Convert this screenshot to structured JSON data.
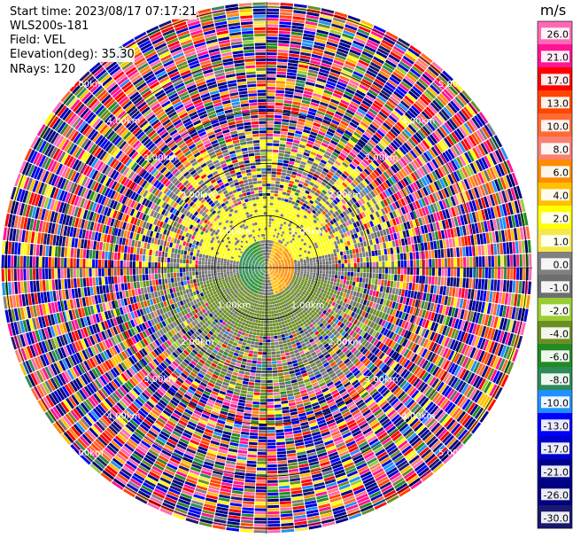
{
  "header": {
    "start_time": "Start time: 2023/08/17 07:17:21",
    "instrument": "WLS200s-181",
    "field": "Field: VEL",
    "elevation": "Elevation(deg): 35.30",
    "nrays": "NRays: 120"
  },
  "chart_data": {
    "type": "heatmap",
    "projection": "polar (PPI)",
    "field": "VEL",
    "n_rays": 120,
    "range_rings": [
      {
        "label": "1.00km",
        "value_km": 1.0
      },
      {
        "label": "2.00km",
        "value_km": 2.0
      },
      {
        "label": "3.00km",
        "value_km": 3.0
      },
      {
        "label": "4.00km",
        "value_km": 4.0
      },
      {
        "label": "5.00km",
        "value_km": 5.0
      }
    ],
    "max_range_km": 5.1,
    "colorbar": {
      "unit": "m/s",
      "range": [
        -30.0,
        30.0
      ],
      "ticks": [
        "26.0",
        "21.0",
        "17.0",
        "13.0",
        "10.0",
        "8.0",
        "6.0",
        "4.0",
        "2.0",
        "1.0",
        "0.0",
        "-1.0",
        "-2.0",
        "-4.0",
        "-6.0",
        "-8.0",
        "-10.0",
        "-13.0",
        "-17.0",
        "-21.0",
        "-26.0",
        "-30.0"
      ],
      "bins": [
        {
          "from": 26.0,
          "to": 30.0,
          "color": "#ff69b4"
        },
        {
          "from": 21.0,
          "to": 26.0,
          "color": "#ff1493"
        },
        {
          "from": 17.0,
          "to": 21.0,
          "color": "#ff0000"
        },
        {
          "from": 13.0,
          "to": 17.0,
          "color": "#ff4500"
        },
        {
          "from": 10.0,
          "to": 13.0,
          "color": "#ff6a33"
        },
        {
          "from": 8.0,
          "to": 10.0,
          "color": "#fa8072"
        },
        {
          "from": 6.0,
          "to": 8.0,
          "color": "#ff8c00"
        },
        {
          "from": 4.0,
          "to": 6.0,
          "color": "#ffc000"
        },
        {
          "from": 2.0,
          "to": 4.0,
          "color": "#ffff00"
        },
        {
          "from": 1.0,
          "to": 2.0,
          "color": "#f5e84a"
        },
        {
          "from": 0.0,
          "to": 1.0,
          "color": "#808080"
        },
        {
          "from": -1.0,
          "to": 0.0,
          "color": "#6e6e6e"
        },
        {
          "from": -2.0,
          "to": -1.0,
          "color": "#9acd32"
        },
        {
          "from": -4.0,
          "to": -2.0,
          "color": "#6b8e23"
        },
        {
          "from": -6.0,
          "to": -4.0,
          "color": "#228b22"
        },
        {
          "from": -8.0,
          "to": -6.0,
          "color": "#2e8b57"
        },
        {
          "from": -10.0,
          "to": -8.0,
          "color": "#1e90ff"
        },
        {
          "from": -13.0,
          "to": -10.0,
          "color": "#0000ff"
        },
        {
          "from": -17.0,
          "to": -13.0,
          "color": "#0000cd"
        },
        {
          "from": -21.0,
          "to": -17.0,
          "color": "#00008b"
        },
        {
          "from": -26.0,
          "to": -21.0,
          "color": "#000080"
        },
        {
          "from": -30.0,
          "to": -26.0,
          "color": "#191970"
        }
      ]
    }
  }
}
